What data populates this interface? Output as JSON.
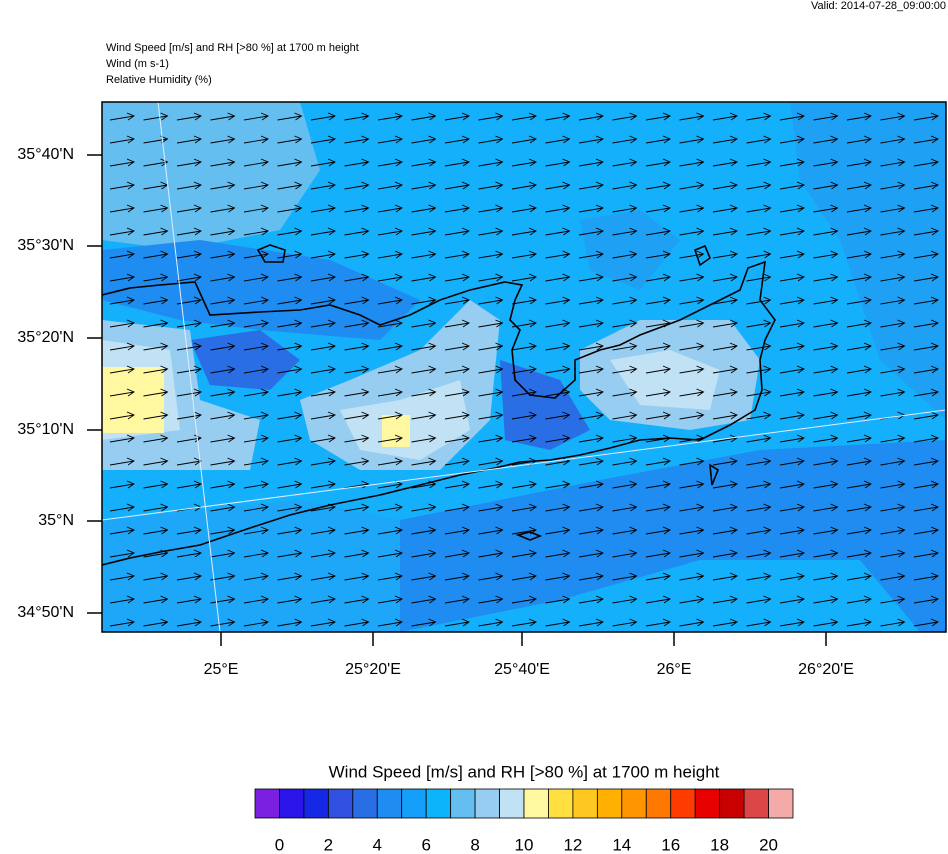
{
  "header": {
    "valid": "Valid: 2014-07-28_09:00:00",
    "title_lines": [
      "Wind Speed [m/s] and RH [>80 %] at 1700 m height",
      "Wind   (m s-1)",
      "Relative Humidity   (%)"
    ]
  },
  "map": {
    "lat_labels": [
      "35°40'N",
      "35°30'N",
      "35°20'N",
      "35°10'N",
      "35°N",
      "34°50'N"
    ],
    "lon_labels": [
      "25°E",
      "25°20'E",
      "25°40'E",
      "26°E",
      "26°20'E"
    ]
  },
  "colorbar": {
    "title": "Wind Speed [m/s] and RH [>80 %] at 1700 m height",
    "levels": [
      0,
      2,
      4,
      6,
      8,
      10,
      12,
      14,
      16,
      18,
      20
    ],
    "colors": [
      "#7b1fe0",
      "#2a14e8",
      "#1428e6",
      "#3050e0",
      "#2a6ee6",
      "#1e8cf0",
      "#14a0fa",
      "#0cb4fc",
      "#64bef0",
      "#96cdf0",
      "#c0e2f4",
      "#fff8a0",
      "#ffe040",
      "#ffc820",
      "#ffb000",
      "#ff9600",
      "#ff7800",
      "#ff3c00",
      "#e60000",
      "#c80000",
      "#dc4646",
      "#f5aaaa"
    ]
  }
}
